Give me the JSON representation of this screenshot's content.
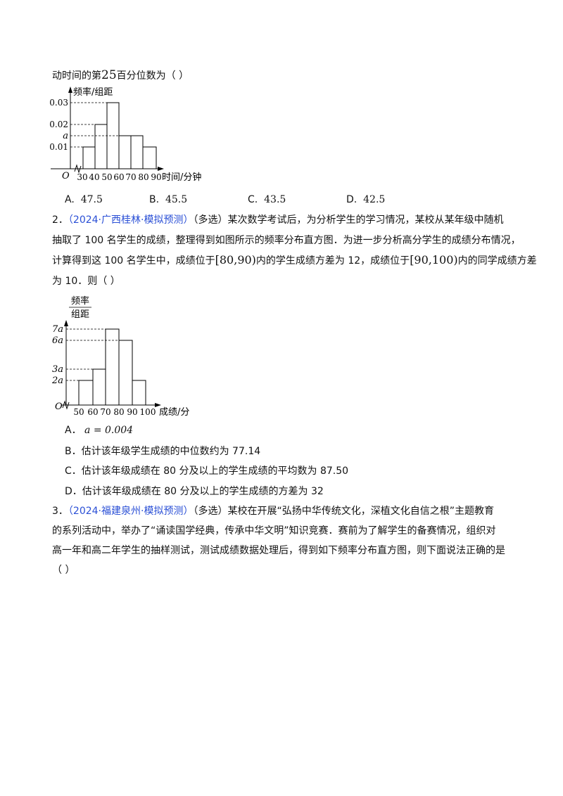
{
  "q1": {
    "stem_tail": "动时间的第",
    "stem_num": "25",
    "stem_end": "百分位数为（    ）",
    "options": [
      {
        "label": "A.",
        "value": "47.5"
      },
      {
        "label": "B.",
        "value": "45.5"
      },
      {
        "label": "C.",
        "value": "43.5"
      },
      {
        "label": "D.",
        "value": "42.5"
      }
    ]
  },
  "chart1": {
    "ylabel": "频率/组距",
    "xlabel": "时间/分钟",
    "origin": "O",
    "ytick_labels": [
      "0.03",
      "0.02",
      "a",
      "0.01"
    ],
    "xtick_labels": [
      "30",
      "40",
      "50",
      "60",
      "70",
      "80",
      "90"
    ]
  },
  "q2": {
    "number": "2．",
    "source": "（2024·广西桂林·模拟预测）",
    "type": "（多选）",
    "line1_rest": "某次数学考试后，为分析学生的学习情况，某校从某年级中随机",
    "line2": "抽取了 100 名学生的成绩，整理得到如图所示的频率分布直方图．为进一步分析高分学生的成绩分布情况，",
    "line3_a": "计算得到这 100 名学生中，成绩位于",
    "interval1": "[80,90)",
    "line3_b": "内的学生成绩方差为 12，成绩位于",
    "interval2": "[90,100)",
    "line3_c": "内的同学成绩方差",
    "line4": "为 10．则（    ）",
    "options": [
      {
        "label": "A．",
        "value": "a = 0.004"
      },
      {
        "label": "B．",
        "value": "估计该年级学生成绩的中位数约为 77.14"
      },
      {
        "label": "C．",
        "value": "估计该年级成绩在 80 分及以上的学生成绩的平均数为 87.50"
      },
      {
        "label": "D．",
        "value": "估计该年级成绩在 80 分及以上的学生成绩的方差为 32"
      }
    ]
  },
  "chart2": {
    "ylabel_top": "频率",
    "ylabel_bottom": "组距",
    "xlabel": "成绩/分",
    "origin": "O",
    "ytick_labels": [
      "7a",
      "6a",
      "3a",
      "2a"
    ],
    "xtick_labels": [
      "50",
      "60",
      "70",
      "80",
      "90",
      "100"
    ]
  },
  "q3": {
    "number": "3．",
    "source": "（2024·福建泉州·模拟预测）",
    "type": "（多选）",
    "line1_rest": "某校在开展“弘扬中华传统文化，深植文化自信之根”主题教育",
    "line2": "的系列活动中，举办了“诵读国学经典，传承中华文明”知识竞赛．赛前为了解学生的备赛情况，组织对",
    "line3": "高一年和高二年学生的抽样测试，测试成绩数据处理后，得到如下频率分布直方图，则下面说法正确的是",
    "line4": "（    ）"
  }
}
